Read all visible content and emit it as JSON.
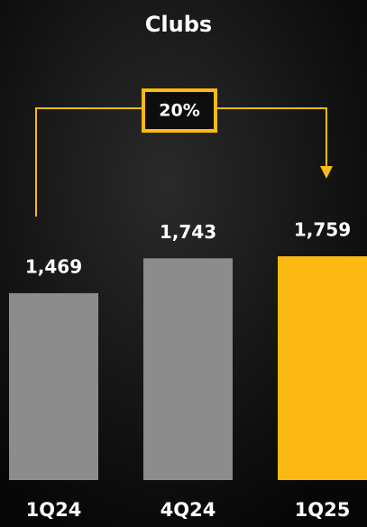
{
  "chart_data": {
    "type": "bar",
    "title": "Clubs",
    "categories": [
      "1Q24",
      "4Q24",
      "1Q25"
    ],
    "values": [
      1469,
      1743,
      1759
    ],
    "value_labels": [
      "1,469",
      "1,743",
      "1,759"
    ],
    "colors": [
      "#8c8c8c",
      "#8c8c8c",
      "#fdb913"
    ],
    "annotation": "20%"
  }
}
